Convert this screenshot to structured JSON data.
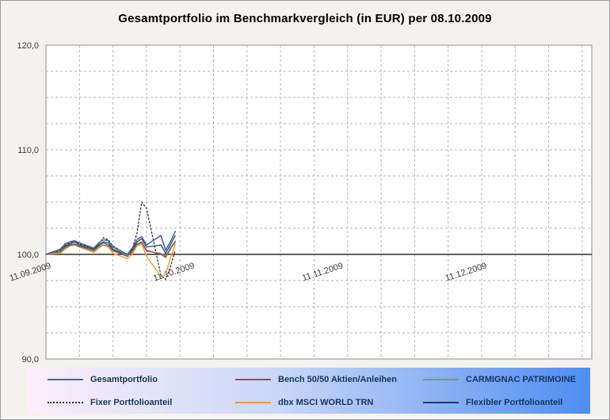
{
  "title": "Gesamtportfolio im Benchmarkvergleich (in EUR) per 08.10.2009",
  "colors": {
    "plot_bg": "#ffffff",
    "outer_bg": "#f4f2ef",
    "grid": "#b3b3b3",
    "baseline": "#000000",
    "plot_border": "#8f8f8f",
    "axis_text": "#3a3a3a",
    "legend_text": "#17365d",
    "legend_gradient_start": "#fdeffa",
    "legend_gradient_mid": "#c9d6f7",
    "legend_gradient_end": "#4e8df2"
  },
  "chart_data": {
    "type": "line",
    "title": "Gesamtportfolio im Benchmarkvergleich (in EUR) per 08.10.2009",
    "xlabel": "",
    "ylabel": "",
    "ylim": [
      90,
      120
    ],
    "ytick_step": 2.5,
    "baseline_value": 100,
    "grid": "on",
    "legend_position": "bottom",
    "y_ticks": [
      {
        "value": 90,
        "label": "90,0"
      },
      {
        "value": 100,
        "label": "100,0"
      },
      {
        "value": 110,
        "label": "110,0"
      },
      {
        "value": 120,
        "label": "120,0"
      }
    ],
    "x_span_days": 114,
    "vertical_grid_step_days": 7,
    "x_ticks": [
      {
        "day": 0,
        "label": "11.09.2009"
      },
      {
        "day": 30,
        "label": "11.10.2009"
      },
      {
        "day": 61,
        "label": "11.11.2009"
      },
      {
        "day": 91,
        "label": "11.12.2009"
      }
    ],
    "x_dates": [
      "11.09",
      "14.09",
      "15.09",
      "16.09",
      "17.09",
      "18.09",
      "21.09",
      "22.09",
      "23.09",
      "24.09",
      "25.09",
      "28.09",
      "29.09",
      "30.09",
      "01.10",
      "02.10",
      "05.10",
      "06.10",
      "07.10",
      "08.10"
    ],
    "x_days": [
      0,
      3,
      4,
      5,
      6,
      7,
      10,
      11,
      12,
      13,
      14,
      17,
      18,
      19,
      20,
      21,
      24,
      25,
      26,
      27
    ],
    "series": [
      {
        "name": "Gesamtportfolio",
        "color": "#3a6ca8",
        "dash": "solid",
        "width": 1.6,
        "values": [
          100.0,
          100.5,
          101.0,
          101.2,
          101.3,
          101.1,
          100.6,
          101.1,
          101.4,
          101.3,
          100.7,
          100.0,
          100.6,
          101.4,
          101.7,
          100.9,
          101.8,
          100.4,
          101.2,
          102.2
        ]
      },
      {
        "name": "Bench 50/50 Aktien/Anleihen",
        "color": "#9c4a41",
        "dash": "solid",
        "width": 1.3,
        "values": [
          100.0,
          100.3,
          100.7,
          100.9,
          101.0,
          100.8,
          100.4,
          100.8,
          101.1,
          100.9,
          100.4,
          99.8,
          100.3,
          101.0,
          101.2,
          100.4,
          100.0,
          99.7,
          100.5,
          101.2
        ]
      },
      {
        "name": "CARMIGNAC PATRIMOINE",
        "color": "#7d9f54",
        "dash": "solid",
        "width": 1.3,
        "values": [
          100.0,
          100.2,
          100.6,
          100.8,
          100.9,
          100.7,
          100.3,
          100.7,
          100.9,
          100.8,
          100.3,
          99.9,
          100.2,
          100.9,
          101.1,
          100.3,
          100.1,
          99.8,
          100.6,
          101.3
        ]
      },
      {
        "name": "Fixer Portfolioanteil",
        "color": "#2b2b3e",
        "dash": "dotted",
        "width": 1.2,
        "values": [
          100.0,
          100.4,
          100.9,
          101.1,
          101.3,
          101.0,
          100.5,
          101.0,
          101.6,
          101.4,
          100.8,
          100.0,
          100.5,
          102.0,
          105.0,
          104.4,
          98.0,
          97.6,
          98.8,
          100.4
        ]
      },
      {
        "name": "dbx MSCI WORLD TRN",
        "color": "#f09d3c",
        "dash": "solid",
        "width": 1.5,
        "values": [
          100.0,
          100.1,
          100.5,
          100.8,
          101.0,
          100.7,
          100.2,
          100.6,
          100.9,
          100.7,
          100.1,
          99.6,
          100.0,
          100.8,
          101.0,
          99.8,
          97.9,
          98.1,
          99.6,
          101.0
        ]
      },
      {
        "name": "Flexibler Portfolioanteil",
        "color": "#1f3a6e",
        "dash": "solid",
        "width": 1.2,
        "values": [
          100.0,
          100.3,
          100.8,
          101.0,
          101.2,
          100.9,
          100.5,
          100.9,
          101.2,
          101.1,
          100.5,
          99.9,
          100.4,
          101.2,
          101.5,
          100.7,
          100.9,
          100.1,
          100.9,
          101.8
        ]
      }
    ]
  }
}
